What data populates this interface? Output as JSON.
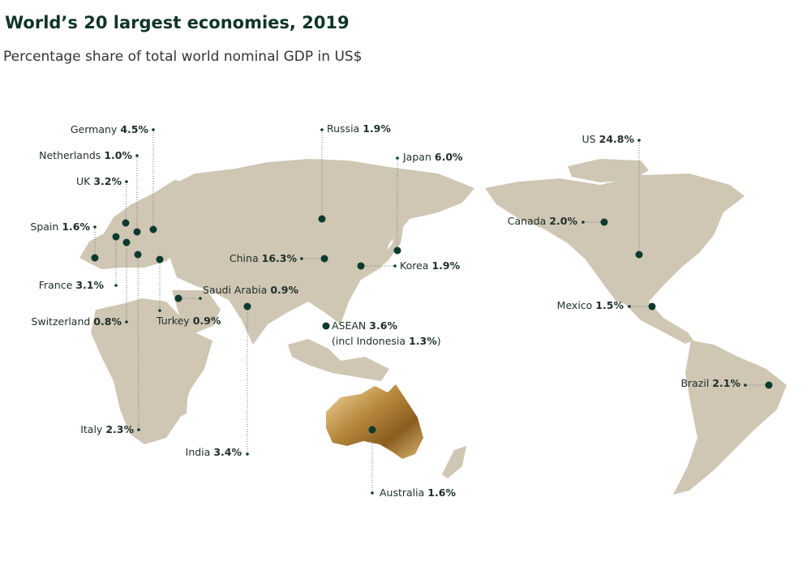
{
  "header": {
    "title": "World’s 20 largest economies, 2019",
    "subtitle": "Percentage share of total world nominal GDP in US$"
  },
  "labels": [
    {
      "name": "Germany",
      "value": "4.5%"
    },
    {
      "name": "Netherlands",
      "value": "1.0%"
    },
    {
      "name": "UK",
      "value": "3.2%"
    },
    {
      "name": "Spain",
      "value": "1.6%"
    },
    {
      "name": "France",
      "value": "3.1%"
    },
    {
      "name": "Switzerland",
      "value": "0.8%"
    },
    {
      "name": "Italy",
      "value": "2.3%"
    },
    {
      "name": "Turkey",
      "value": "0.9%"
    },
    {
      "name": "Saudi Arabia",
      "value": "0.9%"
    },
    {
      "name": "India",
      "value": "3.4%"
    },
    {
      "name": "China",
      "value": "16.3%"
    },
    {
      "name": "Russia",
      "value": "1.9%"
    },
    {
      "name": "Japan",
      "value": "6.0%"
    },
    {
      "name": "Korea",
      "value": "1.9%"
    },
    {
      "name": "ASEAN",
      "value": "3.6%",
      "note_prefix": "(incl Indonesia",
      "note_value": "1.3%",
      "note_suffix": ")"
    },
    {
      "name": "Australia",
      "value": "1.6%"
    },
    {
      "name": "US",
      "value": "24.8%"
    },
    {
      "name": "Canada",
      "value": "2.0%"
    },
    {
      "name": "Mexico",
      "value": "1.5%"
    },
    {
      "name": "Brazil",
      "value": "2.1%"
    }
  ]
}
